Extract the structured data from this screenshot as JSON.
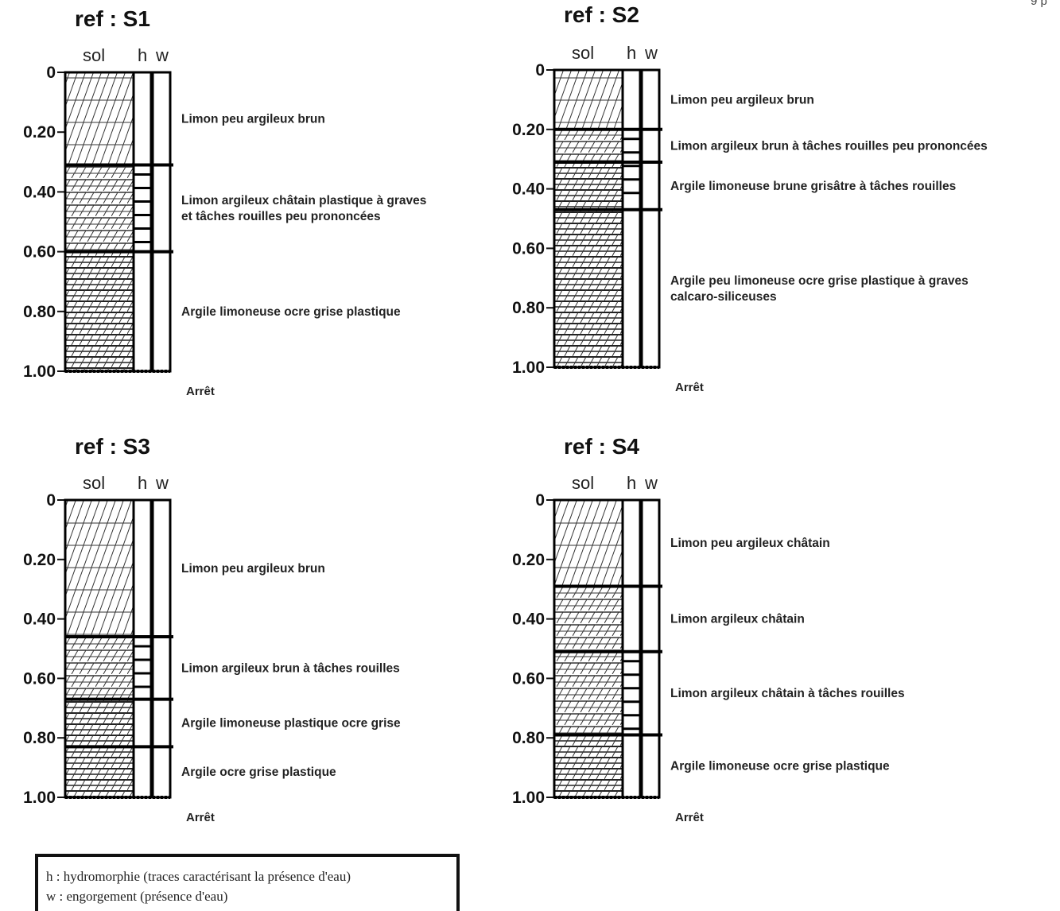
{
  "page_number": "9 p",
  "column_labels": {
    "sol": "sol",
    "h": "h",
    "w": "w"
  },
  "depth_ticks": [
    "0",
    "0.20",
    "0.40",
    "0.60",
    "0.80",
    "1.00"
  ],
  "stop_label": "Arrêt",
  "soundings": [
    {
      "ref": "ref : S1",
      "depth_max": 1.0,
      "layers": [
        {
          "top": 0.0,
          "bottom": 0.31,
          "pattern": "silt",
          "description": [
            "Limon peu argileux brun"
          ]
        },
        {
          "top": 0.31,
          "bottom": 0.6,
          "pattern": "clayey",
          "description": [
            "Limon argileux châtain plastique à graves",
            "et tâches rouilles peu prononcées"
          ]
        },
        {
          "top": 0.6,
          "bottom": 1.0,
          "pattern": "clay",
          "description": [
            "Argile limoneuse ocre grise plastique"
          ]
        }
      ],
      "h_marks": [
        {
          "top": 0.31,
          "bottom": 0.6,
          "style": "ladder"
        },
        {
          "top": 0.6,
          "bottom": 1.0,
          "style": "bar"
        }
      ],
      "w_marks": []
    },
    {
      "ref": "ref : S2",
      "depth_max": 1.0,
      "layers": [
        {
          "top": 0.0,
          "bottom": 0.2,
          "pattern": "silt",
          "description": [
            "Limon peu argileux brun"
          ]
        },
        {
          "top": 0.2,
          "bottom": 0.31,
          "pattern": "clayey",
          "description": [
            "Limon argileux brun à tâches rouilles peu prononcées"
          ]
        },
        {
          "top": 0.31,
          "bottom": 0.47,
          "pattern": "clay",
          "description": [
            "Argile limoneuse brune grisâtre à tâches rouilles"
          ]
        },
        {
          "top": 0.47,
          "bottom": 1.0,
          "pattern": "clay",
          "description": [
            "Argile peu limoneuse ocre grise plastique à graves",
            "calcaro-siliceuses"
          ]
        }
      ],
      "h_marks": [
        {
          "top": 0.2,
          "bottom": 0.47,
          "style": "ladder"
        },
        {
          "top": 0.47,
          "bottom": 1.0,
          "style": "bar"
        }
      ],
      "w_marks": [
        {
          "top": 0.47,
          "bottom": 1.0,
          "style": "bar"
        }
      ]
    },
    {
      "ref": "ref : S3",
      "depth_max": 1.0,
      "layers": [
        {
          "top": 0.0,
          "bottom": 0.46,
          "pattern": "silt",
          "description": [
            "Limon peu argileux brun"
          ]
        },
        {
          "top": 0.46,
          "bottom": 0.67,
          "pattern": "clayey",
          "description": [
            "Limon argileux brun à tâches rouilles"
          ]
        },
        {
          "top": 0.67,
          "bottom": 0.83,
          "pattern": "clay",
          "description": [
            "Argile limoneuse plastique ocre grise"
          ]
        },
        {
          "top": 0.83,
          "bottom": 1.0,
          "pattern": "clay",
          "description": [
            "Argile ocre grise plastique"
          ]
        }
      ],
      "h_marks": [
        {
          "top": 0.46,
          "bottom": 0.67,
          "style": "ladder"
        },
        {
          "top": 0.67,
          "bottom": 1.0,
          "style": "bar"
        }
      ],
      "w_marks": []
    },
    {
      "ref": "ref : S4",
      "depth_max": 1.0,
      "layers": [
        {
          "top": 0.0,
          "bottom": 0.29,
          "pattern": "silt",
          "description": [
            "Limon peu argileux châtain"
          ]
        },
        {
          "top": 0.29,
          "bottom": 0.51,
          "pattern": "clayey",
          "description": [
            "Limon argileux châtain"
          ]
        },
        {
          "top": 0.51,
          "bottom": 0.79,
          "pattern": "clayey",
          "description": [
            "Limon argileux châtain à tâches rouilles"
          ]
        },
        {
          "top": 0.79,
          "bottom": 1.0,
          "pattern": "clay",
          "description": [
            "Argile limoneuse ocre grise plastique"
          ]
        }
      ],
      "h_marks": [
        {
          "top": 0.51,
          "bottom": 0.79,
          "style": "ladder"
        },
        {
          "top": 0.79,
          "bottom": 1.0,
          "style": "bar"
        }
      ],
      "w_marks": []
    }
  ],
  "legend": {
    "h": "h : hydromorphie (traces caractérisant la présence d'eau)",
    "w": "w : engorgement (présence d'eau)"
  }
}
